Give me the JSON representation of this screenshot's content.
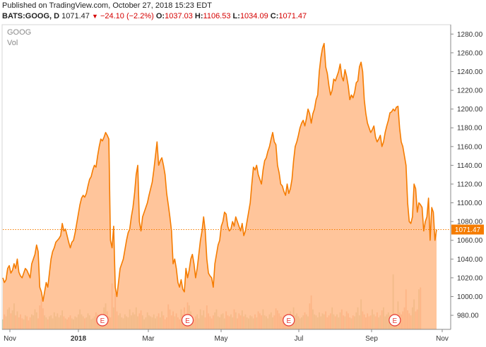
{
  "header": {
    "published": "Published on TradingView.com, October 27, 2018 15:23 EDT",
    "symbol": "BATS:GOOG, D",
    "last": "1071.47",
    "change": "−24.10 (−2.2%)",
    "o_label": "O:",
    "o_value": "1037.03",
    "h_label": "H:",
    "h_value": "1106.53",
    "l_label": "L:",
    "l_value": "1034.09",
    "c_label": "C:",
    "c_value": "1071.47"
  },
  "legend": {
    "symbol": "GOOG",
    "volume": "Vol"
  },
  "colors": {
    "line": "#f57c00",
    "fill": "#ffb27a",
    "last_badge": "#f57c00",
    "earnings": "#e53935",
    "vol_up": "#a5b37a",
    "vol_down": "#f08a6a"
  },
  "chart_data": {
    "type": "area",
    "title": "GOOG",
    "ylim": [
      965,
      1290
    ],
    "y_ticks": [
      "1280.00",
      "1260.00",
      "1240.00",
      "1220.00",
      "1200.00",
      "1180.00",
      "1160.00",
      "1140.00",
      "1120.00",
      "1100.00",
      "1080.00",
      "1060.00",
      "1040.00",
      "1020.00",
      "1000.00",
      "980.00"
    ],
    "x_labels": [
      "Nov",
      "2018",
      "Mar",
      "May",
      "Jul",
      "Sep",
      "Nov"
    ],
    "last_price": "1071.47",
    "earnings_markers": [
      "E",
      "E",
      "E",
      "E"
    ],
    "prices": [
      1020,
      1015,
      1018,
      1030,
      1033,
      1025,
      1028,
      1035,
      1030,
      1040,
      1026,
      1022,
      1020,
      1025,
      1030,
      1028,
      1024,
      1020,
      1035,
      1040,
      1045,
      1055,
      1048,
      1010,
      1005,
      995,
      1005,
      1015,
      1010,
      1025,
      1040,
      1048,
      1052,
      1058,
      1060,
      1062,
      1065,
      1078,
      1070,
      1072,
      1065,
      1058,
      1052,
      1058,
      1060,
      1068,
      1078,
      1088,
      1098,
      1105,
      1108,
      1106,
      1110,
      1118,
      1125,
      1128,
      1135,
      1140,
      1138,
      1150,
      1160,
      1168,
      1166,
      1170,
      1175,
      1172,
      1168,
      1060,
      1052,
      1075,
      1010,
      1000,
      1015,
      1030,
      1035,
      1040,
      1050,
      1060,
      1068,
      1072,
      1085,
      1095,
      1110,
      1130,
      1140,
      1080,
      1070,
      1085,
      1090,
      1095,
      1100,
      1108,
      1115,
      1122,
      1135,
      1150,
      1165,
      1140,
      1145,
      1148,
      1140,
      1130,
      1110,
      1098,
      1085,
      1070,
      1035,
      1040,
      1030,
      1015,
      1010,
      1018,
      1008,
      1005,
      1030,
      1020,
      1028,
      1040,
      1045,
      1035,
      1020,
      1030,
      1045,
      1060,
      1070,
      1085,
      1070,
      1040,
      1025,
      1022,
      1020,
      1010,
      1035,
      1045,
      1055,
      1060,
      1075,
      1080,
      1090,
      1088,
      1075,
      1070,
      1072,
      1080,
      1075,
      1085,
      1080,
      1075,
      1070,
      1078,
      1065,
      1070,
      1080,
      1090,
      1100,
      1120,
      1138,
      1135,
      1140,
      1130,
      1125,
      1120,
      1135,
      1145,
      1148,
      1155,
      1160,
      1168,
      1175,
      1165,
      1162,
      1140,
      1132,
      1120,
      1118,
      1112,
      1108,
      1120,
      1110,
      1115,
      1125,
      1145,
      1160,
      1165,
      1172,
      1180,
      1185,
      1188,
      1182,
      1190,
      1200,
      1195,
      1185,
      1195,
      1200,
      1210,
      1215,
      1240,
      1255,
      1265,
      1270,
      1245,
      1238,
      1225,
      1215,
      1220,
      1232,
      1230,
      1235,
      1240,
      1248,
      1235,
      1230,
      1242,
      1235,
      1225,
      1210,
      1215,
      1212,
      1218,
      1228,
      1230,
      1245,
      1250,
      1240,
      1210,
      1195,
      1185,
      1180,
      1175,
      1178,
      1182,
      1170,
      1165,
      1168,
      1172,
      1160,
      1165,
      1175,
      1182,
      1188,
      1196,
      1197,
      1200,
      1198,
      1202,
      1203,
      1180,
      1165,
      1160,
      1150,
      1140,
      1100,
      1080,
      1078,
      1085,
      1120,
      1115,
      1090,
      1100,
      1098,
      1095,
      1070,
      1080,
      1085,
      1105,
      1060,
      1095,
      1090,
      1060,
      1071.47
    ],
    "volumes": [
      10,
      15,
      13,
      20,
      22,
      16,
      19,
      26,
      14,
      18,
      12,
      15,
      11,
      10,
      14,
      13,
      9,
      12,
      15,
      14,
      20,
      17,
      11,
      24,
      30,
      21,
      14,
      12,
      10,
      13,
      14,
      11,
      17,
      13,
      16,
      12,
      14,
      19,
      13,
      11,
      10,
      12,
      14,
      11,
      10,
      13,
      12,
      15,
      20,
      15,
      13,
      11,
      12,
      16,
      14,
      10,
      11,
      13,
      17,
      15,
      11,
      12,
      15,
      22,
      26,
      18,
      13,
      12,
      46,
      22,
      36,
      18,
      14,
      16,
      12,
      11,
      15,
      13,
      12,
      20,
      14,
      17,
      15,
      22,
      13,
      16,
      19,
      14,
      10,
      12,
      17,
      14,
      13,
      12,
      15,
      11,
      13,
      16,
      12,
      18,
      14,
      10,
      12,
      25,
      20,
      14,
      18,
      13,
      16,
      12,
      10,
      20,
      15,
      22,
      14,
      27,
      24,
      18,
      12,
      10,
      13,
      15,
      11,
      20,
      14,
      19,
      12,
      24,
      16,
      13,
      11,
      14,
      17,
      20,
      13,
      12,
      15,
      16,
      11,
      18,
      14,
      13,
      15,
      12,
      20,
      17,
      11,
      16,
      14,
      19,
      13,
      15,
      12,
      11,
      14,
      13,
      11,
      15,
      12,
      18,
      16,
      14,
      20,
      14,
      13,
      11,
      15,
      17,
      12,
      14,
      21,
      19,
      16,
      13,
      12,
      14,
      11,
      15,
      13,
      18,
      12,
      22,
      14,
      16,
      13,
      11,
      12,
      14,
      17,
      15,
      13,
      26,
      34,
      20,
      15,
      14,
      12,
      17,
      13,
      16,
      15,
      18,
      12,
      14,
      16,
      22,
      15,
      13,
      15,
      12,
      17,
      20,
      14,
      13,
      18,
      16,
      12,
      11,
      14,
      13,
      17,
      22,
      14,
      30,
      18,
      15,
      12,
      16,
      13,
      14,
      20,
      15,
      13,
      17,
      12,
      14,
      19,
      22,
      13,
      15,
      17,
      14,
      11,
      55,
      16,
      14,
      28,
      17,
      15,
      18,
      22,
      40,
      19,
      16,
      14,
      22,
      30,
      18,
      20,
      40,
      42
    ],
    "earnings_index": [
      62,
      115,
      178,
      244
    ]
  }
}
